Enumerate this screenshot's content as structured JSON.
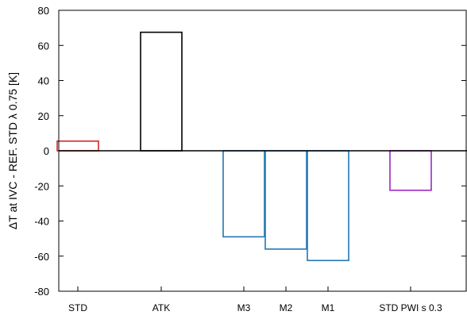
{
  "chart_data": {
    "type": "bar",
    "ylabel": "ΔT at IVC - REF. STD λ 0.75 [K]",
    "ylim": [
      -80,
      80
    ],
    "yticks": [
      -80,
      -60,
      -40,
      -20,
      0,
      20,
      40,
      60,
      80
    ],
    "grid": false,
    "legend": "none",
    "bar_style": "unfilled outline",
    "bars": [
      {
        "label": "STD",
        "value": 5.5,
        "color": "#d62728"
      },
      {
        "label": "ATK",
        "value": 67.5,
        "color": "#000000"
      },
      {
        "label": "M3",
        "value": -49,
        "color": "#1f77b4"
      },
      {
        "label": "M2",
        "value": -56,
        "color": "#1f77b4"
      },
      {
        "label": "M1",
        "value": -62.5,
        "color": "#1f77b4"
      },
      {
        "label": "STD PWI s 0.3",
        "value": -22.5,
        "color": "#9b27c7"
      }
    ]
  }
}
